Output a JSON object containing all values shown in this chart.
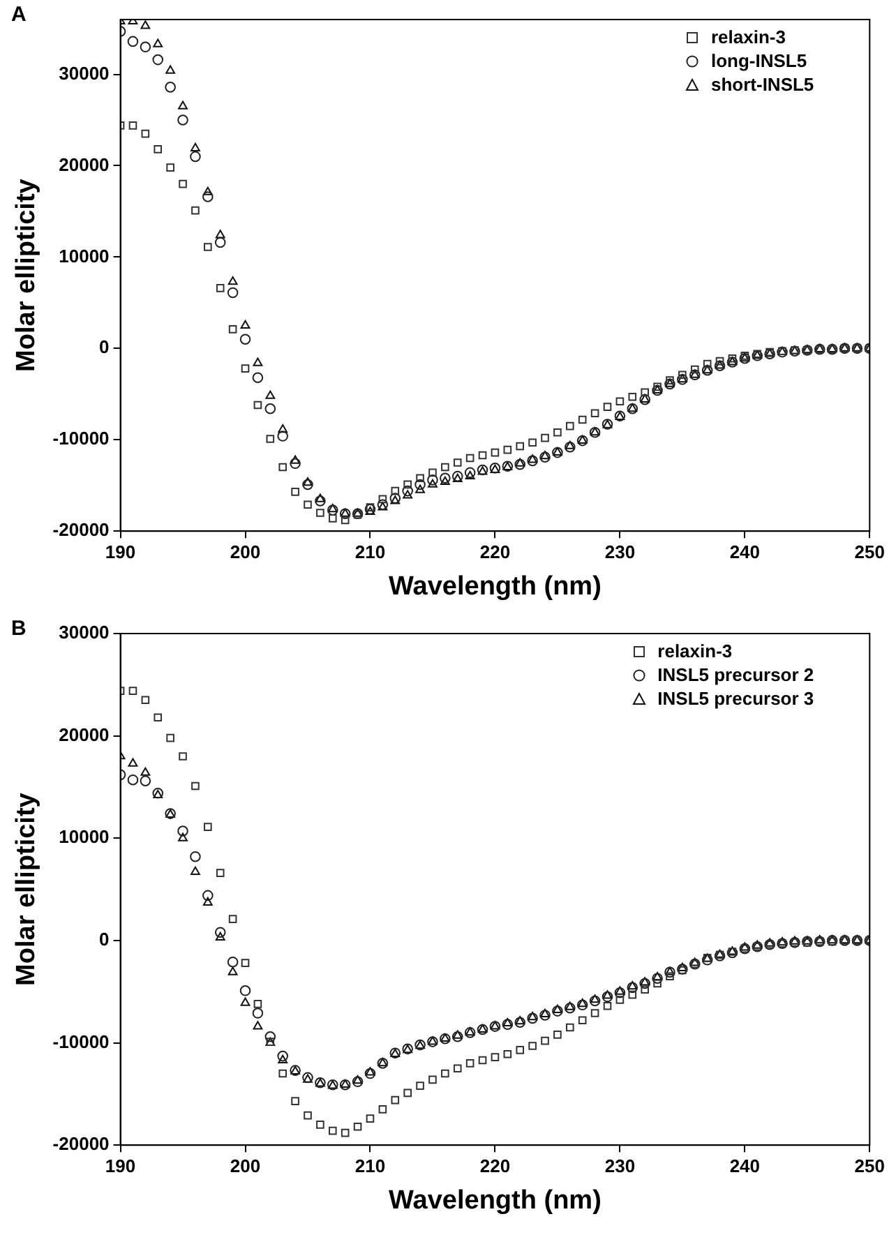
{
  "chart_data": [
    {
      "type": "scatter",
      "annotations": [
        "A"
      ],
      "xlabel": "Wavelength (nm)",
      "ylabel": "Molar ellipticity",
      "legend": "top right",
      "grid": false,
      "x": [
        190,
        191,
        192,
        193,
        194,
        195,
        196,
        197,
        198,
        199,
        200,
        201,
        202,
        203,
        204,
        205,
        206,
        207,
        208,
        209,
        210,
        211,
        212,
        213,
        214,
        215,
        216,
        217,
        218,
        219,
        220,
        221,
        222,
        223,
        224,
        225,
        226,
        227,
        228,
        229,
        230,
        231,
        232,
        233,
        234,
        235,
        236,
        237,
        238,
        239,
        240,
        241,
        242,
        243,
        244,
        245,
        246,
        247,
        248,
        249,
        250
      ],
      "xlim": [
        190,
        250
      ],
      "xticks": [
        190,
        200,
        210,
        220,
        230,
        240,
        250
      ],
      "ylim": [
        -20000,
        36000
      ],
      "yticks": [
        -20000,
        -10000,
        0,
        10000,
        20000,
        30000
      ],
      "series": [
        {
          "name": "relaxin-3",
          "color": "#333333",
          "marker": "square",
          "values": [
            24400,
            24400,
            23500,
            21800,
            19800,
            18000,
            15100,
            11100,
            6600,
            2100,
            -2200,
            -6200,
            -9900,
            -13000,
            -15700,
            -17100,
            -18000,
            -18600,
            -18800,
            -18200,
            -17400,
            -16500,
            -15600,
            -14900,
            -14200,
            -13600,
            -13000,
            -12500,
            -12000,
            -11700,
            -11400,
            -11100,
            -10700,
            -10300,
            -9800,
            -9200,
            -8500,
            -7800,
            -7100,
            -6400,
            -5800,
            -5300,
            -4800,
            -4200,
            -3500,
            -2900,
            -2300,
            -1700,
            -1400,
            -1100,
            -800,
            -600,
            -400,
            -300,
            -200,
            -200,
            -100,
            -100,
            0,
            0,
            0
          ]
        },
        {
          "name": "long-INSL5",
          "color": "#222222",
          "marker": "circle",
          "values": [
            34700,
            33600,
            33000,
            31600,
            28600,
            25000,
            21000,
            16600,
            11600,
            6100,
            1000,
            -3200,
            -6600,
            -9600,
            -12600,
            -14900,
            -16700,
            -17700,
            -18100,
            -18100,
            -17600,
            -17100,
            -16400,
            -15600,
            -14900,
            -14400,
            -14200,
            -14000,
            -13600,
            -13300,
            -13100,
            -12900,
            -12700,
            -12300,
            -11900,
            -11400,
            -10800,
            -10100,
            -9200,
            -8300,
            -7400,
            -6600,
            -5600,
            -4600,
            -3900,
            -3400,
            -2900,
            -2400,
            -1900,
            -1500,
            -1100,
            -800,
            -600,
            -400,
            -300,
            -200,
            -100,
            -100,
            0,
            0,
            0
          ]
        },
        {
          "name": "short-INSL5",
          "color": "#111111",
          "marker": "triangle",
          "values": [
            35800,
            35800,
            35300,
            33300,
            30400,
            26500,
            21900,
            17100,
            12400,
            7300,
            2500,
            -1600,
            -5200,
            -8900,
            -12300,
            -14700,
            -16500,
            -17600,
            -18100,
            -18100,
            -17900,
            -17400,
            -16700,
            -16100,
            -15500,
            -14900,
            -14600,
            -14300,
            -14000,
            -13500,
            -13300,
            -13000,
            -12600,
            -12200,
            -11800,
            -11400,
            -10700,
            -10100,
            -9200,
            -8400,
            -7500,
            -6600,
            -5600,
            -4600,
            -3900,
            -3400,
            -2900,
            -2400,
            -1900,
            -1500,
            -1100,
            -800,
            -600,
            -400,
            -300,
            -200,
            -100,
            -100,
            0,
            0,
            0
          ]
        }
      ]
    },
    {
      "type": "scatter",
      "annotations": [
        "B"
      ],
      "xlabel": "Wavelength (nm)",
      "ylabel": "Molar ellipticity",
      "legend": "top right",
      "grid": false,
      "x": [
        190,
        191,
        192,
        193,
        194,
        195,
        196,
        197,
        198,
        199,
        200,
        201,
        202,
        203,
        204,
        205,
        206,
        207,
        208,
        209,
        210,
        211,
        212,
        213,
        214,
        215,
        216,
        217,
        218,
        219,
        220,
        221,
        222,
        223,
        224,
        225,
        226,
        227,
        228,
        229,
        230,
        231,
        232,
        233,
        234,
        235,
        236,
        237,
        238,
        239,
        240,
        241,
        242,
        243,
        244,
        245,
        246,
        247,
        248,
        249,
        250
      ],
      "xlim": [
        190,
        250
      ],
      "xticks": [
        190,
        200,
        210,
        220,
        230,
        240,
        250
      ],
      "ylim": [
        -20000,
        30000
      ],
      "yticks": [
        -20000,
        -10000,
        0,
        10000,
        20000,
        30000
      ],
      "series": [
        {
          "name": "relaxin-3",
          "color": "#333333",
          "marker": "square",
          "values": [
            24400,
            24400,
            23500,
            21800,
            19800,
            18000,
            15100,
            11100,
            6600,
            2100,
            -2200,
            -6200,
            -9900,
            -13000,
            -15700,
            -17100,
            -18000,
            -18600,
            -18800,
            -18200,
            -17400,
            -16500,
            -15600,
            -14900,
            -14200,
            -13600,
            -13000,
            -12500,
            -12000,
            -11700,
            -11400,
            -11100,
            -10700,
            -10300,
            -9800,
            -9200,
            -8500,
            -7800,
            -7100,
            -6400,
            -5800,
            -5300,
            -4800,
            -4200,
            -3500,
            -2900,
            -2300,
            -1700,
            -1400,
            -1100,
            -800,
            -600,
            -400,
            -300,
            -200,
            -200,
            -100,
            -100,
            0,
            0,
            0
          ]
        },
        {
          "name": "INSL5 precursor 2",
          "color": "#222222",
          "marker": "circle",
          "values": [
            16200,
            15700,
            15600,
            14400,
            12400,
            10700,
            8200,
            4400,
            800,
            -2100,
            -4900,
            -7100,
            -9400,
            -11300,
            -12700,
            -13400,
            -13900,
            -14100,
            -14100,
            -13800,
            -13000,
            -12000,
            -11000,
            -10600,
            -10200,
            -9900,
            -9600,
            -9400,
            -9000,
            -8700,
            -8400,
            -8200,
            -8000,
            -7600,
            -7300,
            -6900,
            -6600,
            -6300,
            -5900,
            -5500,
            -5100,
            -4600,
            -4200,
            -3700,
            -3100,
            -2800,
            -2300,
            -1900,
            -1500,
            -1200,
            -800,
            -600,
            -400,
            -300,
            -200,
            -100,
            -100,
            0,
            0,
            0,
            0
          ]
        },
        {
          "name": "INSL5 precursor 3",
          "color": "#111111",
          "marker": "triangle",
          "values": [
            18000,
            17300,
            16400,
            14200,
            12300,
            10000,
            6700,
            3700,
            300,
            -3100,
            -6100,
            -8400,
            -10000,
            -11700,
            -12800,
            -13600,
            -14000,
            -14200,
            -14100,
            -13700,
            -12900,
            -12000,
            -11100,
            -10700,
            -10300,
            -9900,
            -9600,
            -9300,
            -9000,
            -8700,
            -8400,
            -8100,
            -7900,
            -7500,
            -7200,
            -6800,
            -6500,
            -6200,
            -5800,
            -5400,
            -5000,
            -4500,
            -4100,
            -3600,
            -3100,
            -2700,
            -2200,
            -1800,
            -1400,
            -1100,
            -700,
            -500,
            -300,
            -200,
            -100,
            -100,
            0,
            0,
            0,
            0,
            0
          ]
        }
      ]
    }
  ]
}
